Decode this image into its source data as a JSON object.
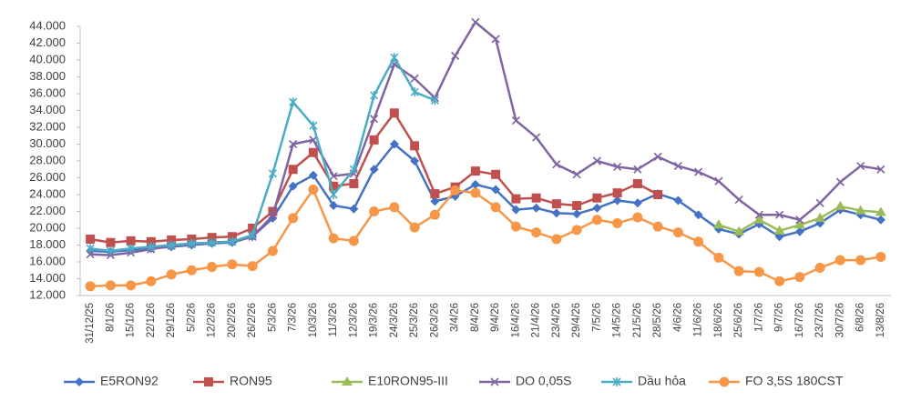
{
  "chart_data": {
    "type": "line",
    "categories": [
      "31/12/25",
      "8/1/26",
      "15/1/26",
      "22/1/26",
      "29/1/26",
      "5/2/26",
      "12/2/26",
      "20/2/26",
      "26/2/26",
      "5/3/26",
      "7/3/26",
      "10/3/26",
      "11/3/26",
      "12/3/26",
      "19/3/26",
      "24/3/26",
      "25/3/26",
      "26/3/26",
      "3/4/26",
      "8/4/26",
      "9/4/26",
      "16/4/26",
      "21/4/26",
      "23/4/26",
      "29/4/26",
      "7/5/26",
      "14/5/26",
      "21/5/26",
      "28/5/26",
      "4/6/26",
      "11/6/26",
      "18/6/26",
      "25/6/26",
      "1/7/26",
      "9/7/26",
      "16/7/26",
      "23/7/26",
      "30/7/26",
      "6/8/26",
      "13/8/26"
    ],
    "series": [
      {
        "name": "E5RON92",
        "color": "#4472c4",
        "marker": "diamond",
        "values": [
          17.3,
          17.2,
          17.4,
          17.6,
          17.8,
          18.0,
          18.2,
          18.3,
          19.0,
          21.2,
          25.0,
          26.3,
          22.7,
          22.3,
          27.0,
          30.0,
          28.0,
          23.2,
          23.8,
          25.2,
          24.6,
          22.2,
          22.4,
          21.8,
          21.7,
          22.4,
          23.3,
          23.0,
          24.1,
          23.3,
          21.6,
          19.9,
          19.3,
          20.5,
          19.0,
          19.6,
          20.6,
          22.2,
          21.6,
          21.0
        ]
      },
      {
        "name": "RON95",
        "color": "#c0504d",
        "marker": "square",
        "values": [
          18.7,
          18.3,
          18.5,
          18.4,
          18.6,
          18.7,
          18.9,
          19.0,
          20.0,
          22.0,
          27.0,
          29.0,
          25.0,
          25.3,
          30.5,
          33.7,
          29.8,
          24.1,
          24.9,
          26.8,
          26.4,
          23.5,
          23.6,
          22.9,
          22.7,
          23.6,
          24.2,
          25.3,
          24.0,
          null,
          null,
          null,
          null,
          null,
          null,
          null,
          null,
          null,
          null,
          null
        ]
      },
      {
        "name": "E10RON95-III",
        "color": "#9bbb59",
        "marker": "triangle",
        "values": [
          null,
          null,
          null,
          null,
          null,
          null,
          null,
          null,
          null,
          null,
          null,
          null,
          null,
          null,
          null,
          null,
          null,
          null,
          null,
          null,
          null,
          null,
          null,
          null,
          null,
          null,
          null,
          null,
          null,
          null,
          null,
          20.4,
          19.6,
          21.0,
          19.7,
          20.4,
          21.2,
          22.6,
          22.1,
          21.9
        ]
      },
      {
        "name": "DO 0,05S",
        "color": "#8064a2",
        "marker": "x",
        "values": [
          16.9,
          16.8,
          17.1,
          17.5,
          17.9,
          18.1,
          18.3,
          18.4,
          19.0,
          21.5,
          30.0,
          30.5,
          26.2,
          26.5,
          33.0,
          39.5,
          37.8,
          35.5,
          40.5,
          44.5,
          42.5,
          32.8,
          30.8,
          27.6,
          26.4,
          28.0,
          27.3,
          27.0,
          28.5,
          27.4,
          26.7,
          25.6,
          23.4,
          21.6,
          21.6,
          21.0,
          23.0,
          25.5,
          27.4,
          27.0
        ]
      },
      {
        "name": "Dầu hỏa",
        "color": "#4bacc6",
        "marker": "star",
        "values": [
          17.6,
          17.3,
          17.6,
          17.8,
          18.0,
          18.2,
          18.3,
          18.4,
          19.2,
          26.5,
          35.0,
          32.2,
          24.0,
          27.0,
          35.8,
          40.3,
          36.2,
          35.2,
          null,
          null,
          null,
          null,
          null,
          null,
          null,
          null,
          null,
          null,
          null,
          null,
          null,
          null,
          null,
          null,
          null,
          null,
          null,
          null,
          null,
          null
        ]
      },
      {
        "name": "FO 3,5S 180CST",
        "color": "#f79646",
        "marker": "circle",
        "values": [
          13.1,
          13.2,
          13.2,
          13.7,
          14.5,
          15.0,
          15.4,
          15.7,
          15.5,
          17.3,
          21.2,
          24.6,
          18.8,
          18.5,
          22.0,
          22.5,
          20.1,
          21.6,
          24.5,
          24.2,
          22.5,
          20.2,
          19.5,
          18.7,
          19.8,
          21.0,
          20.6,
          21.3,
          20.2,
          19.5,
          18.4,
          16.5,
          14.9,
          14.8,
          13.7,
          14.2,
          15.3,
          16.2,
          16.2,
          16.6
        ]
      }
    ],
    "ylim": [
      12,
      44
    ],
    "yticks": [
      {
        "value": 12,
        "label": "12.000"
      },
      {
        "value": 14,
        "label": "14.000"
      },
      {
        "value": 16,
        "label": "16.000"
      },
      {
        "value": 18,
        "label": "18.000"
      },
      {
        "value": 20,
        "label": "20.000"
      },
      {
        "value": 22,
        "label": "22.000"
      },
      {
        "value": 24,
        "label": "24.000"
      },
      {
        "value": 26,
        "label": "26.000"
      },
      {
        "value": 28,
        "label": "28.000"
      },
      {
        "value": 30,
        "label": "30.000"
      },
      {
        "value": 32,
        "label": "32.000"
      },
      {
        "value": 34,
        "label": "34.000"
      },
      {
        "value": 36,
        "label": "36.000"
      },
      {
        "value": 38,
        "label": "38.000"
      },
      {
        "value": 40,
        "label": "40.000"
      },
      {
        "value": 42,
        "label": "42.000"
      },
      {
        "value": 44,
        "label": "44.000"
      }
    ],
    "grid": false,
    "legend": "bottom"
  }
}
